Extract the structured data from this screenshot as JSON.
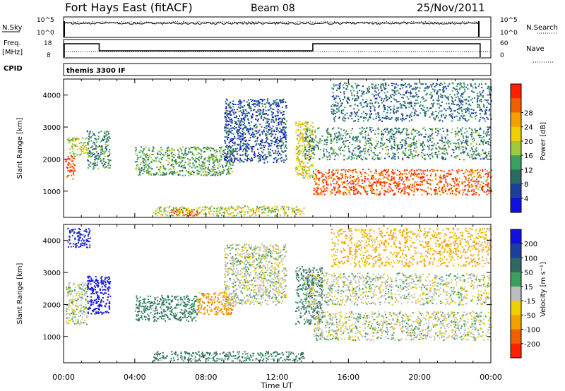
{
  "header": {
    "station": "Fort Hays East (fitACF)",
    "beam": "Beam 08",
    "date": "25/Nov/2011"
  },
  "noise_panel": {
    "left_label": "N.Sky",
    "left_tick_top": "10^5",
    "left_tick_bottom": "10^0",
    "right_tick_top": "10^5",
    "right_tick_bottom": "10^0",
    "right_label": "N.Search"
  },
  "freq_panel": {
    "left_label_line1": "Freq.",
    "left_label_line2": "[MHz]",
    "left_tick_top": "18",
    "left_tick_bottom": "8",
    "right_tick_top": "60",
    "right_tick_bottom": "0",
    "right_label": "Nave",
    "cpid_label": "CPID",
    "cpid_value": "themis 3300 IF"
  },
  "colors": {
    "power": [
      "#1010e0",
      "#1d3fa0",
      "#2d6a62",
      "#3aa060",
      "#9ecb3c",
      "#f0d000",
      "#f4a000",
      "#f06000",
      "#ff2000"
    ],
    "velocity": [
      "#1010e0",
      "#1d3fa0",
      "#2d6a62",
      "#3aa060",
      "#bdbdbd",
      "#f0d000",
      "#f4a000",
      "#f06000",
      "#ff2000"
    ]
  },
  "chart_data": [
    {
      "type": "heatmap",
      "name": "power-panel",
      "ylabel": "Slant Range [km]",
      "ylim": [
        180,
        4500
      ],
      "yticks": [
        "1000",
        "2000",
        "3000",
        "4000"
      ],
      "xlim": [
        0,
        24
      ],
      "colorbar": {
        "label": "Power [dB]",
        "ticks": [
          "4",
          "8",
          "12",
          "16",
          "20",
          "24",
          "28"
        ],
        "range": [
          0,
          30
        ]
      },
      "regions": [
        {
          "t0": 0.1,
          "t1": 0.6,
          "r0": 1400,
          "r1": 2200,
          "v": 26
        },
        {
          "t0": 0.2,
          "t1": 1.3,
          "r0": 2100,
          "r1": 2700,
          "v": 16
        },
        {
          "t0": 1.3,
          "t1": 2.6,
          "r0": 1700,
          "r1": 2900,
          "v": 10
        },
        {
          "t0": 4.0,
          "t1": 9.5,
          "r0": 1500,
          "r1": 2400,
          "v": 12
        },
        {
          "t0": 5.0,
          "t1": 13.5,
          "r0": 250,
          "r1": 550,
          "v": 16
        },
        {
          "t0": 6.0,
          "t1": 7.5,
          "r0": 250,
          "r1": 450,
          "v": 26
        },
        {
          "t0": 9.0,
          "t1": 12.5,
          "r0": 1900,
          "r1": 3900,
          "v": 6
        },
        {
          "t0": 13.0,
          "t1": 14.0,
          "r0": 1400,
          "r1": 3200,
          "v": 18
        },
        {
          "t0": 14.0,
          "t1": 24.0,
          "r0": 900,
          "r1": 1700,
          "v": 26
        },
        {
          "t0": 13.5,
          "t1": 24.0,
          "r0": 2000,
          "r1": 3000,
          "v": 10
        },
        {
          "t0": 15.0,
          "t1": 24.0,
          "r0": 3200,
          "r1": 4400,
          "v": 8
        }
      ]
    },
    {
      "type": "heatmap",
      "name": "velocity-panel",
      "ylabel": "Slant Range [km]",
      "ylim": [
        180,
        4500
      ],
      "yticks": [
        "1000",
        "2000",
        "3000",
        "4000"
      ],
      "xlim": [
        0,
        24
      ],
      "xticks": [
        "00:00",
        "04:00",
        "08:00",
        "12:00",
        "16:00",
        "20:00",
        "00:00"
      ],
      "xlabel": "Time UT",
      "colorbar": {
        "label": "Velocity [m s⁻¹]",
        "ticks": [
          "200",
          "100",
          "50",
          "15",
          "-15",
          "-50",
          "-100",
          "-200"
        ],
        "range": [
          -250,
          250
        ]
      },
      "regions": [
        {
          "t0": 0.1,
          "t1": 1.3,
          "r0": 1400,
          "r1": 2700,
          "v": 0
        },
        {
          "t0": 1.3,
          "t1": 2.6,
          "r0": 1700,
          "r1": 2900,
          "v": 180
        },
        {
          "t0": 0.2,
          "t1": 1.5,
          "r0": 3800,
          "r1": 4400,
          "v": 150
        },
        {
          "t0": 4.0,
          "t1": 7.5,
          "r0": 1500,
          "r1": 2300,
          "v": 40
        },
        {
          "t0": 7.5,
          "t1": 9.5,
          "r0": 1700,
          "r1": 2400,
          "v": -60
        },
        {
          "t0": 5.0,
          "t1": 13.5,
          "r0": 250,
          "r1": 550,
          "v": 40
        },
        {
          "t0": 9.0,
          "t1": 12.5,
          "r0": 2000,
          "r1": 3900,
          "v": 0
        },
        {
          "t0": 13.0,
          "t1": 14.5,
          "r0": 1400,
          "r1": 3200,
          "v": 35
        },
        {
          "t0": 14.0,
          "t1": 24.0,
          "r0": 900,
          "r1": 1800,
          "v": 0
        },
        {
          "t0": 13.5,
          "t1": 24.0,
          "r0": 2000,
          "r1": 3000,
          "v": 0
        },
        {
          "t0": 15.0,
          "t1": 24.0,
          "r0": 3200,
          "r1": 4400,
          "v": -40
        }
      ]
    }
  ]
}
